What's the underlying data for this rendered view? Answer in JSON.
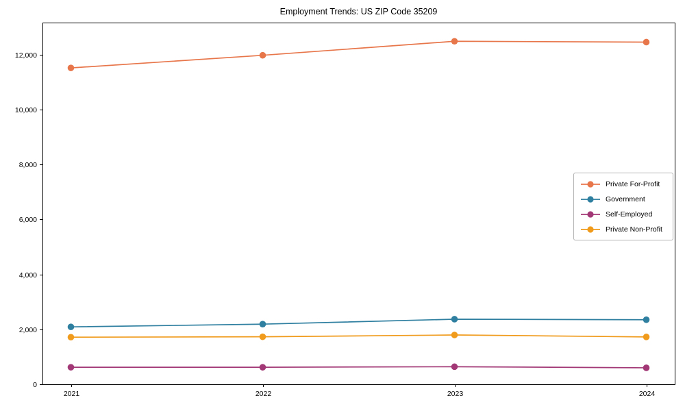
{
  "title": "Employment Trends: US ZIP Code 35209",
  "chart_data": {
    "type": "line",
    "title": "Employment Trends: US ZIP Code 35209",
    "x": [
      2021,
      2022,
      2023,
      2024
    ],
    "xtick_labels": [
      "2021",
      "2022",
      "2023",
      "2024"
    ],
    "yticks": [
      0,
      2000,
      4000,
      6000,
      8000,
      10000,
      12000
    ],
    "ytick_labels": [
      "0",
      "2,000",
      "4,000",
      "6,000",
      "8,000",
      "10,000",
      "12,000"
    ],
    "ylim": [
      0,
      13170
    ],
    "grid": false,
    "legend_position": "center right",
    "xlabel": "",
    "ylabel": "",
    "series": [
      {
        "name": "Private For-Profit",
        "color": "#E8764B",
        "values": [
          11520,
          11980,
          12490,
          12460
        ]
      },
      {
        "name": "Government",
        "color": "#2E7FA0",
        "values": [
          2090,
          2190,
          2370,
          2350
        ]
      },
      {
        "name": "Self-Employed",
        "color": "#A23976",
        "values": [
          620,
          620,
          640,
          600
        ]
      },
      {
        "name": "Private Non-Profit",
        "color": "#F09B1C",
        "values": [
          1715,
          1730,
          1795,
          1725
        ]
      }
    ]
  }
}
